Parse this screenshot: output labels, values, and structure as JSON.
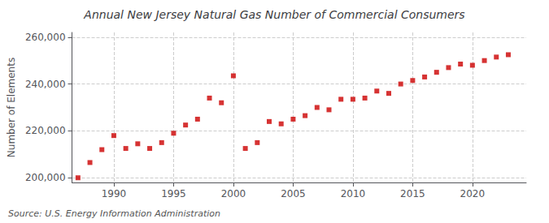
{
  "chart_data": {
    "type": "scatter",
    "title": "Annual New Jersey Natural Gas Number of Commercial Consumers",
    "ylabel": "Number of Elements",
    "annotation": "Source: U.S. Energy Information Administration",
    "x": [
      1987,
      1988,
      1989,
      1990,
      1991,
      1992,
      1993,
      1994,
      1995,
      1996,
      1997,
      1998,
      1999,
      2000,
      2001,
      2002,
      2003,
      2004,
      2005,
      2006,
      2007,
      2008,
      2009,
      2010,
      2011,
      2012,
      2013,
      2014,
      2015,
      2016,
      2017,
      2018,
      2019,
      2020,
      2021,
      2022,
      2023
    ],
    "values": [
      200000,
      206500,
      212000,
      218000,
      212500,
      214500,
      212500,
      215000,
      219000,
      222500,
      225000,
      234000,
      232000,
      243500,
      212500,
      215000,
      224000,
      223000,
      225000,
      226500,
      230000,
      229000,
      233500,
      233500,
      234000,
      237000,
      236000,
      240000,
      241500,
      243000,
      245000,
      247000,
      248500,
      248000,
      250000,
      251500,
      252500
    ],
    "color": "#cc0000",
    "marker": "square",
    "xlim": [
      1986.5,
      2024.5
    ],
    "xticks": [
      1990,
      1995,
      2000,
      2005,
      2010,
      2015,
      2020
    ],
    "ylim": [
      198000,
      262000
    ],
    "yticks": [
      {
        "value": 200000,
        "label": "200,000"
      },
      {
        "value": 220000,
        "label": "220,000"
      },
      {
        "value": 240000,
        "label": "240,000"
      },
      {
        "value": 260000,
        "label": "260,000"
      }
    ],
    "grid": true
  }
}
